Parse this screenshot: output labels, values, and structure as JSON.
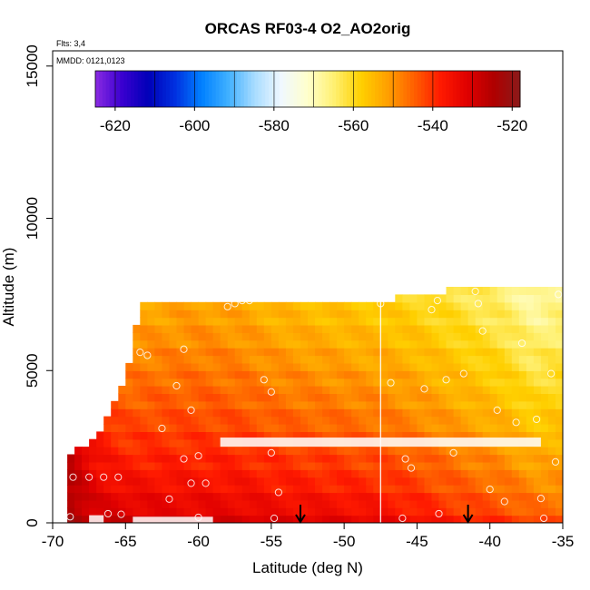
{
  "chart_data": {
    "type": "heatmap",
    "title": "ORCAS RF03-4 O2_AO2orig",
    "annotations": [
      "Flts: 3,4",
      "MMDD: 0121,0123"
    ],
    "xlabel": "Latitude (deg N)",
    "ylabel": "Altitude (m)",
    "xlim": [
      -70,
      -35
    ],
    "ylim": [
      0,
      15500
    ],
    "x_ticks": [
      -70,
      -65,
      -60,
      -55,
      -50,
      -45,
      -40,
      -35
    ],
    "y_ticks": [
      0,
      5000,
      10000,
      15000
    ],
    "grid": false,
    "colorbar": {
      "placement": "top-inset",
      "range": [
        -625,
        -518
      ],
      "ticks": [
        -620,
        -600,
        -580,
        -560,
        -540,
        -520
      ],
      "colors": [
        "#8a2be2",
        "#3a00d0",
        "#0000b8",
        "#0030e0",
        "#0080ff",
        "#40b0ff",
        "#a8dcff",
        "#f0f8ff",
        "#ffffcc",
        "#fff070",
        "#ffd000",
        "#ffa000",
        "#ff6000",
        "#ff1a00",
        "#e00000",
        "#b00000",
        "#8b1a1a"
      ]
    },
    "cell_size": {
      "lat": 0.5,
      "alt": 250
    },
    "profiles": [
      {
        "lat": -69.0,
        "top": 2200,
        "v0": -522,
        "v1": -526
      },
      {
        "lat": -67.0,
        "top": 2800,
        "v0": -528,
        "v1": -537
      },
      {
        "lat": -65.0,
        "top": 4700,
        "v0": -528,
        "v1": -547
      },
      {
        "lat": -64.0,
        "top": 7200,
        "v0": -529,
        "v1": -553
      },
      {
        "lat": -60.0,
        "top": 7200,
        "v0": -530,
        "v1": -552
      },
      {
        "lat": -57.0,
        "top": 7200,
        "v0": -530,
        "v1": -553
      },
      {
        "lat": -55.0,
        "top": 7300,
        "v0": -531,
        "v1": -555
      },
      {
        "lat": -50.0,
        "top": 7300,
        "v0": -532,
        "v1": -557
      },
      {
        "lat": -47.5,
        "top": 7300,
        "v0": -533,
        "v1": -558
      },
      {
        "lat": -45.0,
        "top": 7500,
        "v0": -535,
        "v1": -560
      },
      {
        "lat": -42.0,
        "top": 7700,
        "v0": -538,
        "v1": -563
      },
      {
        "lat": -39.0,
        "top": 7700,
        "v0": -540,
        "v1": -566
      },
      {
        "lat": -37.0,
        "top": 7700,
        "v0": -542,
        "v1": -570
      },
      {
        "lat": -35.5,
        "top": 7700,
        "v0": -543,
        "v1": -568
      }
    ],
    "data_gaps": [
      {
        "lat": [
          -67.5,
          -66.5
        ],
        "alt": [
          0,
          250
        ]
      },
      {
        "lat": [
          -64.5,
          -59.0
        ],
        "alt": [
          0,
          200
        ]
      },
      {
        "lat": [
          -58.5,
          -36.5
        ],
        "alt": [
          2500,
          2800
        ]
      }
    ],
    "cut_line_lat": -47.5,
    "sample_points": [
      [
        -68.8,
        200
      ],
      [
        -68.6,
        1500
      ],
      [
        -67.5,
        1500
      ],
      [
        -66.5,
        1500
      ],
      [
        -65.5,
        1500
      ],
      [
        -66.2,
        300
      ],
      [
        -65.3,
        280
      ],
      [
        -64.5,
        7100
      ],
      [
        -63.5,
        5500
      ],
      [
        -64.0,
        5600
      ],
      [
        -62.5,
        3100
      ],
      [
        -62.0,
        780
      ],
      [
        -61.0,
        2100
      ],
      [
        -60.0,
        2200
      ],
      [
        -61.5,
        4500
      ],
      [
        -60.5,
        3700
      ],
      [
        -60.5,
        1300
      ],
      [
        -59.5,
        1300
      ],
      [
        -61.0,
        5700
      ],
      [
        -60.0,
        180
      ],
      [
        -58.0,
        7100
      ],
      [
        -57.5,
        7200
      ],
      [
        -57.0,
        7300
      ],
      [
        -56.5,
        7300
      ],
      [
        -55.5,
        4700
      ],
      [
        -55.0,
        4300
      ],
      [
        -55.0,
        2300
      ],
      [
        -54.5,
        1000
      ],
      [
        -54.8,
        150
      ],
      [
        -47.5,
        7200
      ],
      [
        -46.8,
        4600
      ],
      [
        -45.8,
        2100
      ],
      [
        -45.4,
        1800
      ],
      [
        -44.5,
        4400
      ],
      [
        -44.0,
        7000
      ],
      [
        -43.6,
        7300
      ],
      [
        -43.0,
        4700
      ],
      [
        -42.5,
        2300
      ],
      [
        -43.5,
        300
      ],
      [
        -46.0,
        150
      ],
      [
        -41.8,
        4900
      ],
      [
        -41.0,
        7600
      ],
      [
        -40.5,
        6300
      ],
      [
        -40.8,
        7200
      ],
      [
        -40.0,
        1100
      ],
      [
        -39.5,
        3700
      ],
      [
        -39.0,
        700
      ],
      [
        -38.2,
        3300
      ],
      [
        -37.8,
        5900
      ],
      [
        -36.8,
        3400
      ],
      [
        -36.5,
        800
      ],
      [
        -36.3,
        150
      ],
      [
        -35.8,
        4900
      ],
      [
        -35.5,
        2000
      ],
      [
        -35.3,
        7500
      ]
    ],
    "arrows_lat": [
      -53.0,
      -41.5
    ]
  }
}
